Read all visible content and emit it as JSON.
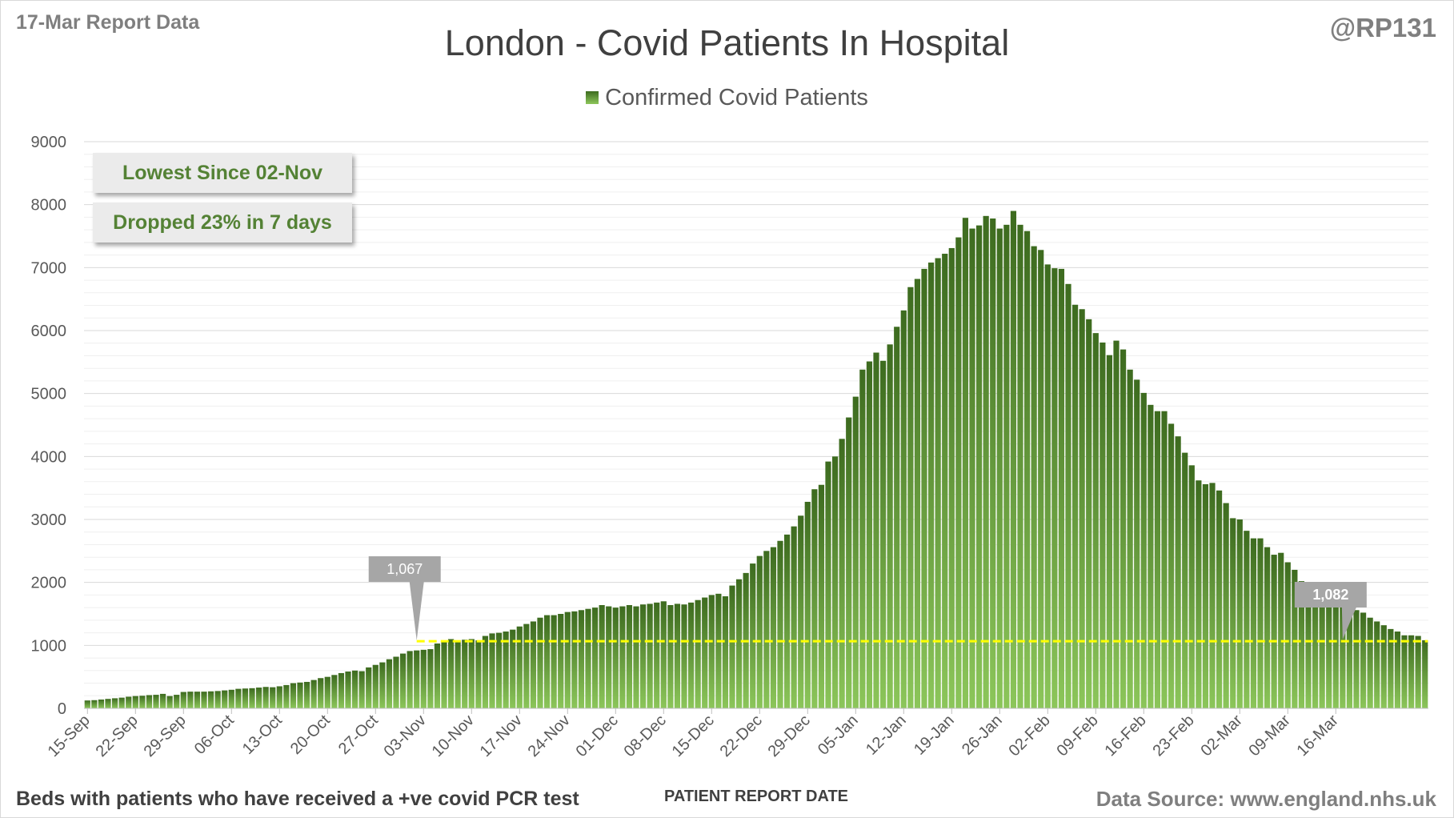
{
  "header": {
    "report_label": "17-Mar Report Data",
    "handle": "@RP131"
  },
  "footer": {
    "note": "Beds with patients who have received a +ve covid PCR test",
    "source": "Data Source: www.england.nhs.uk"
  },
  "callouts": {
    "lowest": "Lowest Since 02-Nov",
    "dropped": "Dropped 23% in 7 days"
  },
  "colors": {
    "bar_top": "#3d6b1f",
    "bar_bottom": "#8cc65a",
    "reference_line": "#ffff00",
    "marker": "#a6a6a6",
    "callout_text": "#548235"
  },
  "chart_data": {
    "type": "bar",
    "title": "London - Covid Patients In Hospital",
    "xlabel": "PATIENT REPORT DATE",
    "ylabel": "",
    "series": [
      {
        "name": "Confirmed Covid Patients",
        "values": [
          125,
          130,
          140,
          150,
          160,
          170,
          185,
          195,
          200,
          210,
          215,
          230,
          195,
          215,
          260,
          265,
          265,
          265,
          270,
          275,
          285,
          295,
          310,
          315,
          320,
          330,
          340,
          335,
          350,
          370,
          400,
          410,
          420,
          450,
          480,
          500,
          530,
          560,
          585,
          600,
          590,
          650,
          690,
          730,
          780,
          820,
          870,
          910,
          920,
          930,
          940,
          1030,
          1067,
          1100,
          1080,
          1090,
          1100,
          1080,
          1150,
          1190,
          1200,
          1220,
          1250,
          1300,
          1340,
          1380,
          1440,
          1480,
          1480,
          1500,
          1530,
          1540,
          1560,
          1580,
          1600,
          1640,
          1620,
          1600,
          1620,
          1640,
          1620,
          1650,
          1660,
          1680,
          1700,
          1640,
          1660,
          1650,
          1680,
          1720,
          1760,
          1800,
          1820,
          1780,
          1950,
          2050,
          2150,
          2300,
          2420,
          2500,
          2560,
          2660,
          2760,
          2890,
          3060,
          3280,
          3480,
          3550,
          3920,
          4000,
          4280,
          4620,
          4950,
          5380,
          5510,
          5650,
          5520,
          5780,
          6060,
          6320,
          6690,
          6820,
          6980,
          7080,
          7150,
          7220,
          7310,
          7480,
          7790,
          7620,
          7670,
          7820,
          7780,
          7620,
          7680,
          7900,
          7680,
          7580,
          7340,
          7280,
          7050,
          6990,
          6980,
          6740,
          6410,
          6340,
          6180,
          5960,
          5810,
          5610,
          5840,
          5700,
          5380,
          5220,
          5010,
          4820,
          4720,
          4720,
          4520,
          4320,
          4060,
          3860,
          3620,
          3560,
          3580,
          3460,
          3260,
          3020,
          3000,
          2820,
          2700,
          2700,
          2560,
          2440,
          2470,
          2320,
          2200,
          2020,
          1800,
          1980,
          1900,
          1830,
          1760,
          1720,
          1620,
          1560,
          1520,
          1440,
          1380,
          1320,
          1260,
          1220,
          1160,
          1160,
          1150,
          1082
        ]
      }
    ],
    "x_start": "2020-09-15",
    "x_end": "2021-03-17",
    "x_ticks": [
      "15-Sep",
      "22-Sep",
      "29-Sep",
      "06-Oct",
      "13-Oct",
      "20-Oct",
      "27-Oct",
      "03-Nov",
      "10-Nov",
      "17-Nov",
      "24-Nov",
      "01-Dec",
      "08-Dec",
      "15-Dec",
      "22-Dec",
      "29-Dec",
      "05-Jan",
      "12-Jan",
      "19-Jan",
      "26-Jan",
      "02-Feb",
      "09-Feb",
      "16-Feb",
      "23-Feb",
      "02-Mar",
      "09-Mar",
      "16-Mar"
    ],
    "y_ticks": [
      0,
      1000,
      2000,
      3000,
      4000,
      5000,
      6000,
      7000,
      8000,
      9000
    ],
    "ylim": [
      0,
      9000
    ],
    "grid": true,
    "legend_position": "top",
    "reference_line": {
      "value": 1067,
      "style": "dashed"
    },
    "annotations": [
      {
        "label": "1,067",
        "date": "2020-11-02",
        "value": 1067
      },
      {
        "label": "1,082",
        "date": "2021-03-17",
        "value": 1082
      }
    ]
  }
}
